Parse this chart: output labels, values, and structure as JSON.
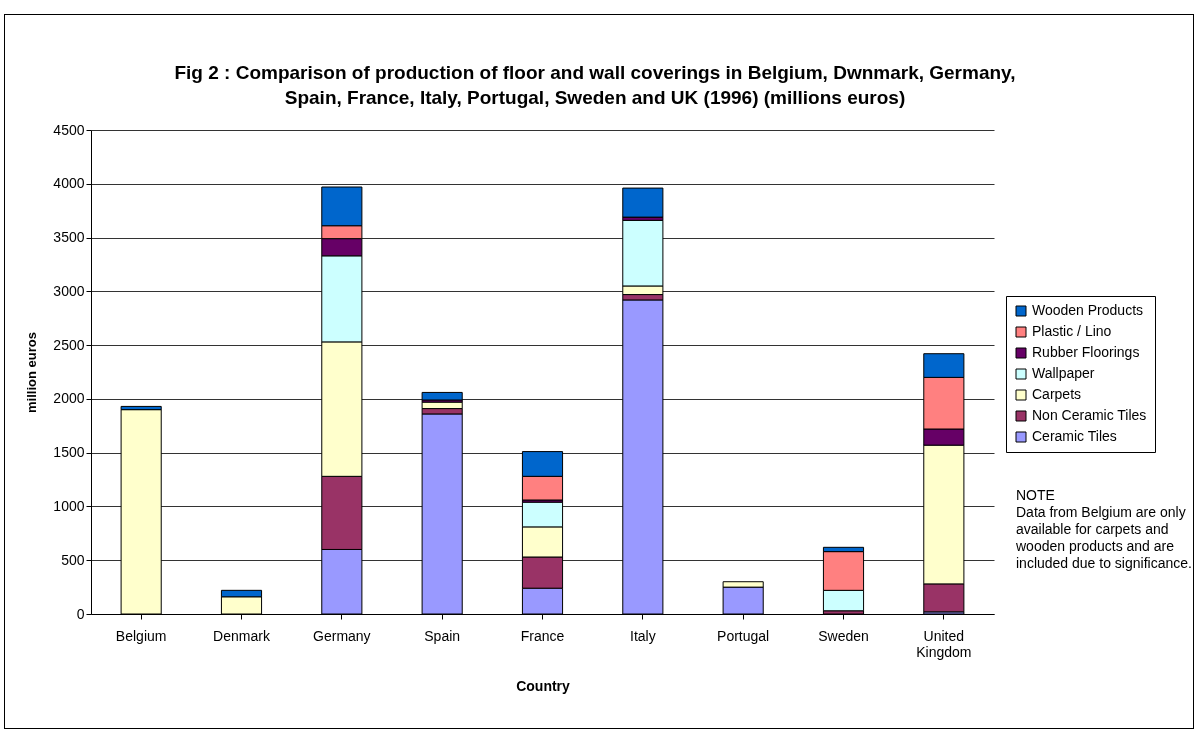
{
  "chart_data": {
    "type": "bar",
    "title": "Fig 2 : Comparison of production of floor and wall coverings in Belgium, Dwnmark, Germany, Spain, France, Italy, Portugal, Sweden and UK (1996) (millions euros)",
    "xlabel": "Country",
    "ylabel": "million euros",
    "categories": [
      "Belgium",
      "Denmark",
      "Germany",
      "Spain",
      "France",
      "Italy",
      "Portugal",
      "Sweden",
      "United Kingdom"
    ],
    "stacked": true,
    "series": [
      {
        "name": "Ceramic Tiles",
        "color": "#9999ff",
        "values": [
          null,
          null,
          600,
          1860,
          240,
          2920,
          250,
          null,
          20
        ]
      },
      {
        "name": "Non Ceramic Tiles",
        "color": "#993366",
        "values": [
          null,
          null,
          680,
          50,
          290,
          50,
          null,
          30,
          260
        ]
      },
      {
        "name": "Carpets",
        "color": "#ffffcc",
        "values": [
          1900,
          160,
          1250,
          60,
          280,
          80,
          50,
          null,
          1290
        ]
      },
      {
        "name": "Wallpaper",
        "color": "#ccffff",
        "values": [
          null,
          null,
          800,
          null,
          230,
          610,
          null,
          190,
          null
        ]
      },
      {
        "name": "Rubber Floorings",
        "color": "#660066",
        "values": [
          null,
          null,
          160,
          20,
          20,
          30,
          null,
          null,
          150
        ]
      },
      {
        "name": "Plastic / Lino",
        "color": "#ff8080",
        "values": [
          null,
          null,
          120,
          null,
          220,
          null,
          null,
          360,
          480
        ]
      },
      {
        "name": "Wooden Products",
        "color": "#0066cc",
        "values": [
          30,
          60,
          360,
          70,
          230,
          270,
          null,
          40,
          220
        ]
      }
    ],
    "ylim": [
      0,
      4500
    ],
    "yticks": [
      0,
      500,
      1000,
      1500,
      2000,
      2500,
      3000,
      3500,
      4000,
      4500
    ],
    "grid": "y",
    "legend": "right",
    "annotations": [
      "NOTE",
      "Data from Belgium are only available for carpets and wooden products and are included due to significance."
    ]
  }
}
